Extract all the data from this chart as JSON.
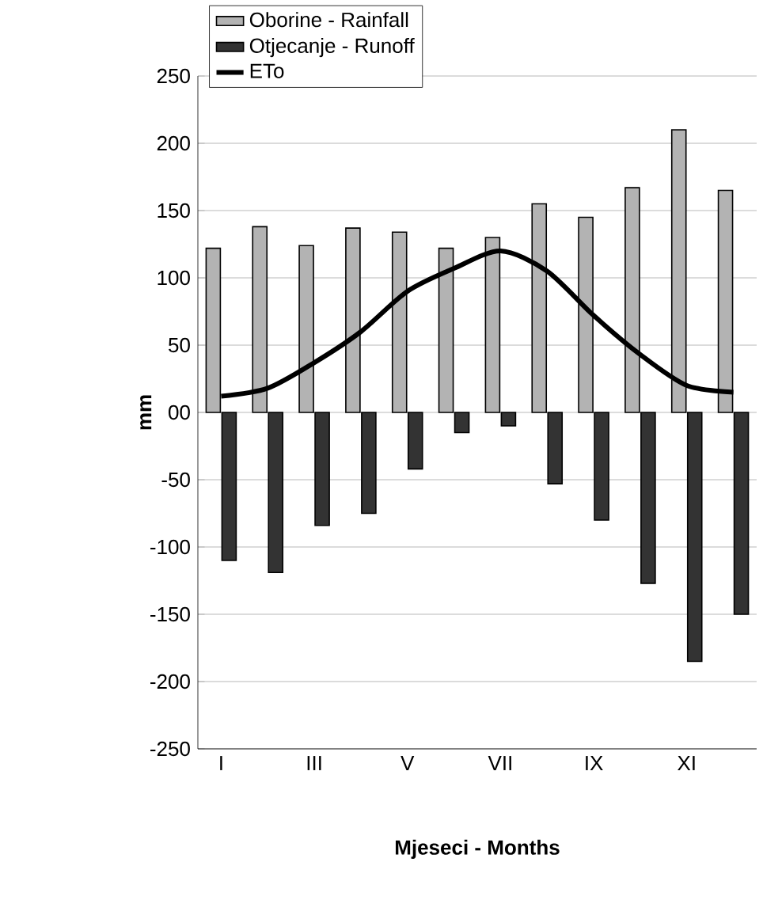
{
  "chart_data": {
    "type": "bar",
    "categories": [
      "I",
      null,
      "III",
      null,
      "V",
      null,
      "VII",
      null,
      "IX",
      null,
      "XI",
      null
    ],
    "series": [
      {
        "name": "Oborine - Rainfall",
        "color": "#b3b3b3",
        "values": [
          122,
          138,
          124,
          137,
          134,
          122,
          130,
          155,
          145,
          167,
          210,
          165
        ]
      },
      {
        "name": "Otjecanje - Runoff",
        "color": "#333333",
        "values": [
          -110,
          -119,
          -84,
          -75,
          -42,
          -15,
          -10,
          -53,
          -80,
          -127,
          -185,
          -150
        ]
      },
      {
        "name": "ETo",
        "type": "line",
        "color": "#000000",
        "values": [
          12,
          18,
          37,
          60,
          90,
          107,
          120,
          105,
          72,
          43,
          20,
          15
        ]
      }
    ],
    "xlabel": "Mjeseci - Months",
    "ylabel": "mm",
    "ylim": [
      -250,
      250
    ],
    "yticks": [
      -250,
      -200,
      -150,
      -100,
      -50,
      {
        "value": 0,
        "label": "00"
      },
      50,
      100,
      150,
      200,
      250
    ],
    "grid": "y",
    "legend": "top"
  }
}
